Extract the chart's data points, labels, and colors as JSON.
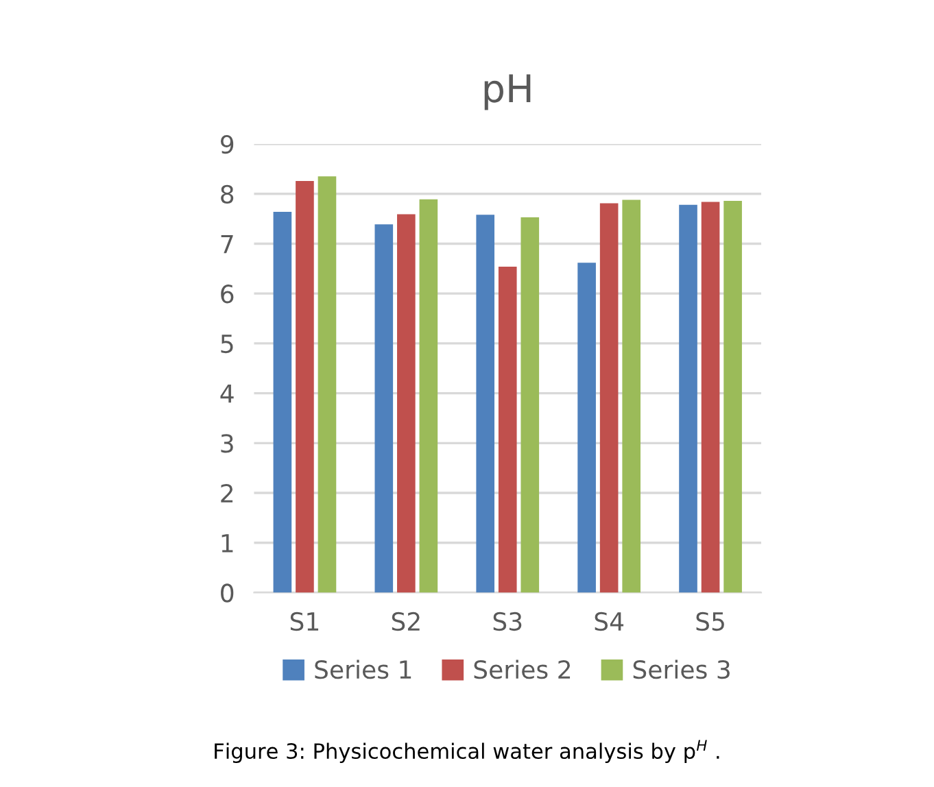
{
  "chart_data": {
    "type": "bar",
    "title": "pH",
    "categories": [
      "S1",
      "S2",
      "S3",
      "S4",
      "S5"
    ],
    "series": [
      {
        "name": "Series 1",
        "color": "#4f81bd",
        "values": [
          7.64,
          7.39,
          7.58,
          6.62,
          7.78
        ]
      },
      {
        "name": "Series 2",
        "color": "#c0504d",
        "values": [
          8.26,
          7.59,
          6.54,
          7.81,
          7.84
        ]
      },
      {
        "name": "Series 3",
        "color": "#9bbb59",
        "values": [
          8.35,
          7.89,
          7.53,
          7.88,
          7.86
        ]
      }
    ],
    "ylim": [
      0,
      9
    ],
    "yticks": [
      0,
      1,
      2,
      3,
      4,
      5,
      6,
      7,
      8,
      9
    ],
    "grid": "y",
    "legend": "bottom",
    "annotations": [
      "Figure 3: Physicochemical water analysis by p$^{H}$ ."
    ]
  }
}
